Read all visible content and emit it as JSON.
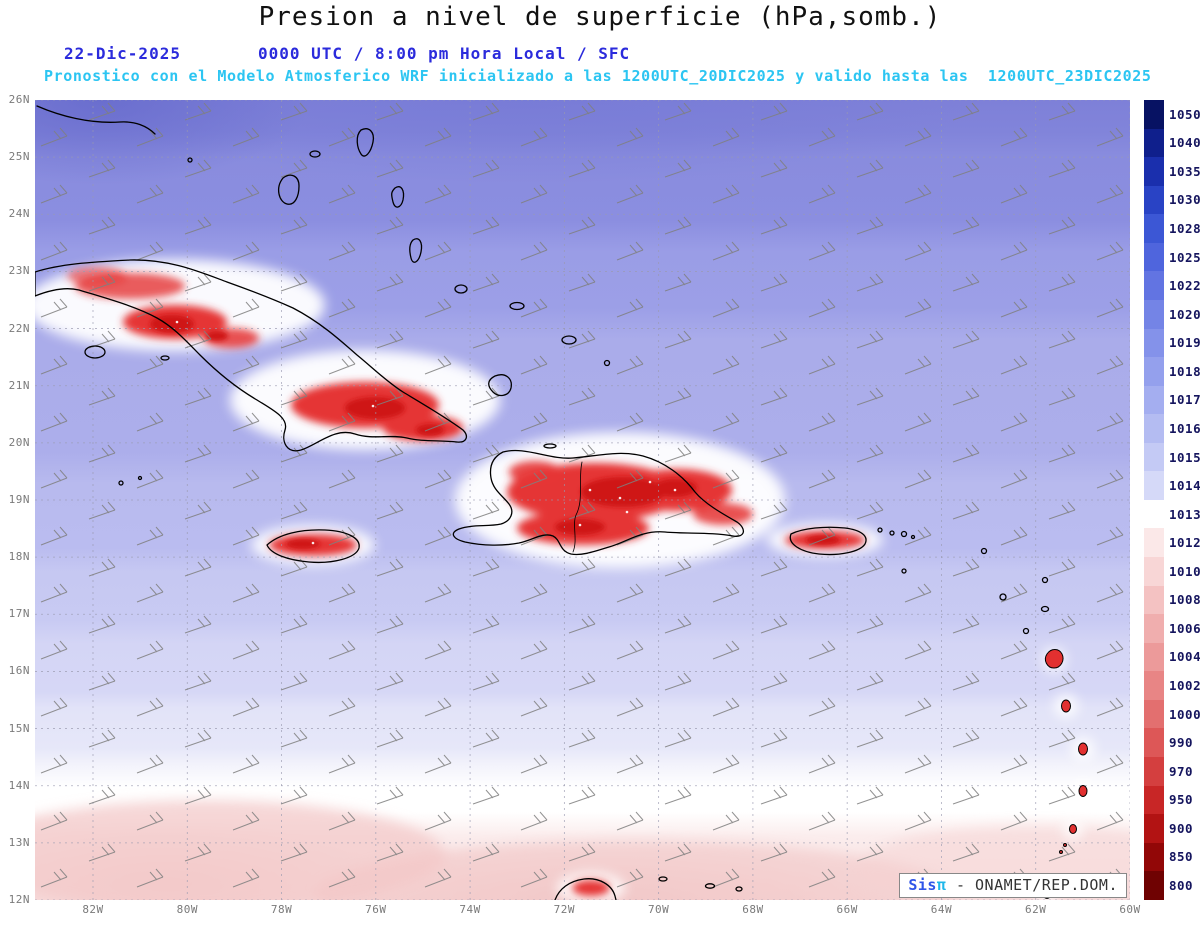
{
  "title": "Presion a nivel de superficie (hPa,somb.)",
  "header": {
    "date": "22-Dic-2025",
    "time_line": "0000 UTC / 8:00 pm Hora Local / SFC",
    "forecast_line": "Pronostico con el Modelo Atmosferico WRF inicializado a las 1200UTC_20DIC2025 y valido hasta las  1200UTC_23DIC2025"
  },
  "credit": {
    "prefix": "Sis",
    "pi": "π",
    "suffix": " - ONAMET/REP.DOM."
  },
  "map": {
    "lat_labels": [
      "26N",
      "25N",
      "24N",
      "23N",
      "22N",
      "21N",
      "20N",
      "19N",
      "18N",
      "17N",
      "16N",
      "15N",
      "14N",
      "13N",
      "12N"
    ],
    "lon_labels": [
      "82W",
      "80W",
      "78W",
      "76W",
      "74W",
      "72W",
      "70W",
      "68W",
      "66W",
      "64W",
      "62W",
      "60W"
    ]
  },
  "colorbar": {
    "unit": "hPa",
    "segments": [
      {
        "label": "1050",
        "color": "#071263"
      },
      {
        "label": "1040",
        "color": "#0f1f8c"
      },
      {
        "label": "1035",
        "color": "#1a2fad"
      },
      {
        "label": "1030",
        "color": "#2943c5"
      },
      {
        "label": "1028",
        "color": "#3c57d5"
      },
      {
        "label": "1025",
        "color": "#4f65dd"
      },
      {
        "label": "1022",
        "color": "#6274e2"
      },
      {
        "label": "1020",
        "color": "#7484e6"
      },
      {
        "label": "1019",
        "color": "#8492ea"
      },
      {
        "label": "1018",
        "color": "#94a0ed"
      },
      {
        "label": "1017",
        "color": "#a4aef0"
      },
      {
        "label": "1016",
        "color": "#b4bcf2"
      },
      {
        "label": "1015",
        "color": "#c4caf5"
      },
      {
        "label": "1014",
        "color": "#d5d9f8"
      },
      {
        "label": "1013",
        "color": "#ffffff"
      },
      {
        "label": "1012",
        "color": "#fbe8e8"
      },
      {
        "label": "1010",
        "color": "#f8d6d6"
      },
      {
        "label": "1008",
        "color": "#f4c2c2"
      },
      {
        "label": "1006",
        "color": "#f0aeae"
      },
      {
        "label": "1004",
        "color": "#ec9a9a"
      },
      {
        "label": "1002",
        "color": "#e88585"
      },
      {
        "label": "1000",
        "color": "#e36f6f"
      },
      {
        "label": "990",
        "color": "#dd5757"
      },
      {
        "label": "970",
        "color": "#d43f3f"
      },
      {
        "label": "950",
        "color": "#c82626"
      },
      {
        "label": "900",
        "color": "#b21313"
      },
      {
        "label": "850",
        "color": "#920707"
      },
      {
        "label": "800",
        "color": "#6f0202"
      }
    ]
  }
}
